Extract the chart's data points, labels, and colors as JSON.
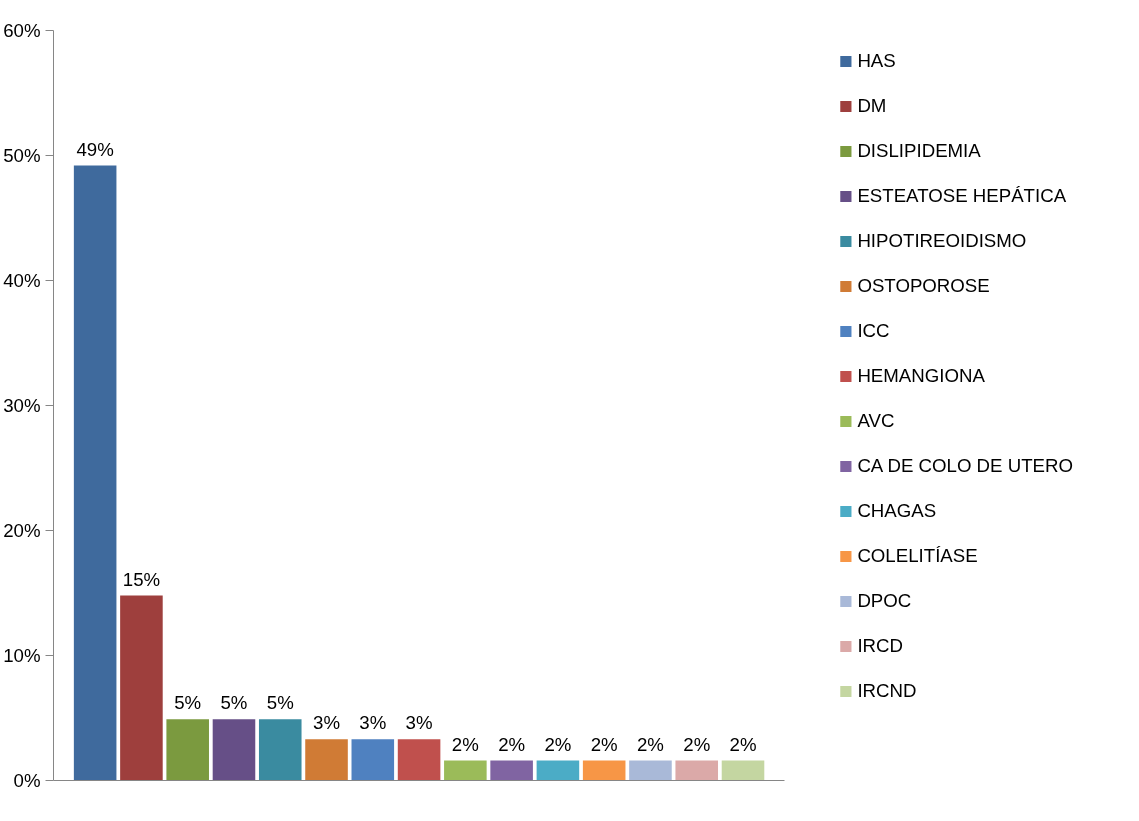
{
  "chart_data": {
    "type": "bar",
    "categories": [
      null,
      null,
      null,
      null,
      null,
      null,
      null,
      null,
      null,
      null,
      null,
      null,
      null,
      null,
      null
    ],
    "ylim": [
      0,
      60
    ],
    "yticks": [
      {
        "value": 0,
        "label": "0%"
      },
      {
        "value": 10,
        "label": "10%"
      },
      {
        "value": 20,
        "label": "20%"
      },
      {
        "value": 30,
        "label": "30%"
      },
      {
        "value": 40,
        "label": "40%"
      },
      {
        "value": 50,
        "label": "50%"
      },
      {
        "value": 60,
        "label": "60%"
      }
    ],
    "tick_labels": "y",
    "legend": "right",
    "grid": false,
    "series": [
      {
        "name": "HAS",
        "color": "#3f6a9d",
        "values": [
          49.2,
          null,
          null,
          null,
          null,
          null,
          null,
          null,
          null,
          null,
          null,
          null,
          null,
          null,
          null
        ],
        "value_labels": [
          "49%",
          null,
          null,
          null,
          null,
          null,
          null,
          null,
          null,
          null,
          null,
          null,
          null,
          null,
          null
        ]
      },
      {
        "name": "DM",
        "color": "#9e3f3d",
        "values": [
          null,
          14.8,
          null,
          null,
          null,
          null,
          null,
          null,
          null,
          null,
          null,
          null,
          null,
          null,
          null
        ],
        "value_labels": [
          null,
          "15%",
          null,
          null,
          null,
          null,
          null,
          null,
          null,
          null,
          null,
          null,
          null,
          null,
          null
        ]
      },
      {
        "name": "DISLIPIDEMIA",
        "color": "#7b9a3f",
        "values": [
          null,
          null,
          4.9,
          null,
          null,
          null,
          null,
          null,
          null,
          null,
          null,
          null,
          null,
          null,
          null
        ],
        "value_labels": [
          null,
          null,
          "5%",
          null,
          null,
          null,
          null,
          null,
          null,
          null,
          null,
          null,
          null,
          null,
          null
        ]
      },
      {
        "name": "ESTEATOSE HEPÁTICA",
        "color": "#664f87",
        "values": [
          null,
          null,
          null,
          4.9,
          null,
          null,
          null,
          null,
          null,
          null,
          null,
          null,
          null,
          null,
          null
        ],
        "value_labels": [
          null,
          null,
          null,
          "5%",
          null,
          null,
          null,
          null,
          null,
          null,
          null,
          null,
          null,
          null,
          null
        ]
      },
      {
        "name": "HIPOTIREOIDISMO",
        "color": "#3a8ba0",
        "values": [
          null,
          null,
          null,
          null,
          4.9,
          null,
          null,
          null,
          null,
          null,
          null,
          null,
          null,
          null,
          null
        ],
        "value_labels": [
          null,
          null,
          null,
          null,
          "5%",
          null,
          null,
          null,
          null,
          null,
          null,
          null,
          null,
          null,
          null
        ]
      },
      {
        "name": "OSTOPOROSE",
        "color": "#d07b35",
        "values": [
          null,
          null,
          null,
          null,
          null,
          3.3,
          null,
          null,
          null,
          null,
          null,
          null,
          null,
          null,
          null
        ],
        "value_labels": [
          null,
          null,
          null,
          null,
          null,
          "3%",
          null,
          null,
          null,
          null,
          null,
          null,
          null,
          null,
          null
        ]
      },
      {
        "name": "ICC",
        "color": "#4f81c0",
        "values": [
          null,
          null,
          null,
          null,
          null,
          null,
          3.3,
          null,
          null,
          null,
          null,
          null,
          null,
          null,
          null
        ],
        "value_labels": [
          null,
          null,
          null,
          null,
          null,
          null,
          "3%",
          null,
          null,
          null,
          null,
          null,
          null,
          null,
          null
        ]
      },
      {
        "name": "HEMANGIONA",
        "color": "#c0504d",
        "values": [
          null,
          null,
          null,
          null,
          null,
          null,
          null,
          3.3,
          null,
          null,
          null,
          null,
          null,
          null,
          null
        ],
        "value_labels": [
          null,
          null,
          null,
          null,
          null,
          null,
          null,
          "3%",
          null,
          null,
          null,
          null,
          null,
          null,
          null
        ]
      },
      {
        "name": "AVC",
        "color": "#9bbb59",
        "values": [
          null,
          null,
          null,
          null,
          null,
          null,
          null,
          null,
          1.6,
          null,
          null,
          null,
          null,
          null,
          null
        ],
        "value_labels": [
          null,
          null,
          null,
          null,
          null,
          null,
          null,
          null,
          "2%",
          null,
          null,
          null,
          null,
          null,
          null
        ]
      },
      {
        "name": "CA DE COLO DE UTERO",
        "color": "#8064a2",
        "values": [
          null,
          null,
          null,
          null,
          null,
          null,
          null,
          null,
          null,
          1.6,
          null,
          null,
          null,
          null,
          null
        ],
        "value_labels": [
          null,
          null,
          null,
          null,
          null,
          null,
          null,
          null,
          null,
          "2%",
          null,
          null,
          null,
          null,
          null
        ]
      },
      {
        "name": "CHAGAS",
        "color": "#4bacc6",
        "values": [
          null,
          null,
          null,
          null,
          null,
          null,
          null,
          null,
          null,
          null,
          1.6,
          null,
          null,
          null,
          null
        ],
        "value_labels": [
          null,
          null,
          null,
          null,
          null,
          null,
          null,
          null,
          null,
          null,
          "2%",
          null,
          null,
          null,
          null
        ]
      },
      {
        "name": "COLELITÍASE",
        "color": "#f79646",
        "values": [
          null,
          null,
          null,
          null,
          null,
          null,
          null,
          null,
          null,
          null,
          null,
          1.6,
          null,
          null,
          null
        ],
        "value_labels": [
          null,
          null,
          null,
          null,
          null,
          null,
          null,
          null,
          null,
          null,
          null,
          "2%",
          null,
          null,
          null
        ]
      },
      {
        "name": "DPOC",
        "color": "#a9b9d8",
        "values": [
          null,
          null,
          null,
          null,
          null,
          null,
          null,
          null,
          null,
          null,
          null,
          null,
          1.6,
          null,
          null
        ],
        "value_labels": [
          null,
          null,
          null,
          null,
          null,
          null,
          null,
          null,
          null,
          null,
          null,
          null,
          "2%",
          null,
          null
        ]
      },
      {
        "name": "IRCD",
        "color": "#dba9a8",
        "values": [
          null,
          null,
          null,
          null,
          null,
          null,
          null,
          null,
          null,
          null,
          null,
          null,
          null,
          1.6,
          null
        ],
        "value_labels": [
          null,
          null,
          null,
          null,
          null,
          null,
          null,
          null,
          null,
          null,
          null,
          null,
          null,
          "2%",
          null
        ]
      },
      {
        "name": "IRCND",
        "color": "#c4d6a1",
        "values": [
          null,
          null,
          null,
          null,
          null,
          null,
          null,
          null,
          null,
          null,
          null,
          null,
          null,
          null,
          1.6
        ],
        "value_labels": [
          null,
          null,
          null,
          null,
          null,
          null,
          null,
          null,
          null,
          null,
          null,
          null,
          null,
          null,
          "2%"
        ]
      }
    ]
  }
}
